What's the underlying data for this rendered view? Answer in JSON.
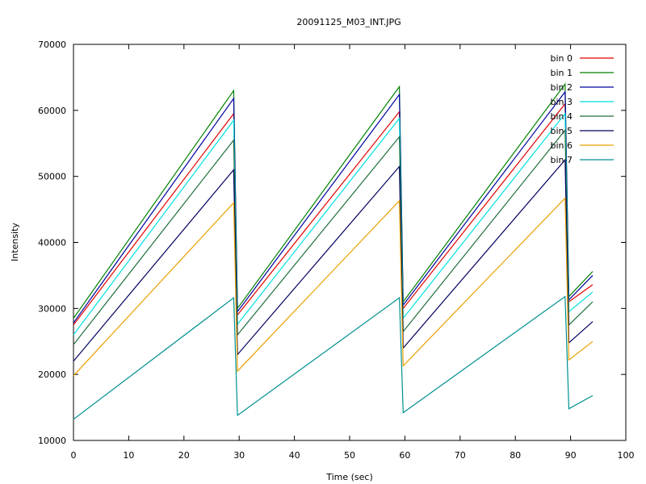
{
  "chart_data": {
    "type": "line",
    "title": "20091125_M03_INT.JPG",
    "xlabel": "Time (sec)",
    "ylabel": "Intensity",
    "xlim": [
      0,
      100
    ],
    "ylim": [
      10000,
      70000
    ],
    "xticks": [
      0,
      10,
      20,
      30,
      40,
      50,
      60,
      70,
      80,
      90,
      100
    ],
    "yticks": [
      10000,
      20000,
      30000,
      40000,
      50000,
      60000,
      70000
    ],
    "grid": false,
    "legend_position": "top-right",
    "x": [
      0,
      29,
      29.7,
      59,
      59.7,
      89,
      89.7,
      94
    ],
    "series": [
      {
        "name": "bin 0",
        "color": "#e00000",
        "values": [
          27500,
          59500,
          29000,
          59800,
          30000,
          61000,
          31000,
          33600
        ]
      },
      {
        "name": "bin 1",
        "color": "#008000",
        "values": [
          28500,
          63000,
          30000,
          63600,
          31000,
          64000,
          31800,
          35600
        ]
      },
      {
        "name": "bin 2",
        "color": "#0000a0",
        "values": [
          27800,
          61800,
          29500,
          62400,
          30500,
          62800,
          31300,
          35000
        ]
      },
      {
        "name": "bin 3",
        "color": "#00e0e0",
        "values": [
          26000,
          58500,
          27600,
          58800,
          28500,
          59500,
          29500,
          32500
        ]
      },
      {
        "name": "bin 4",
        "color": "#1e6e3c",
        "values": [
          24500,
          55500,
          26000,
          56000,
          26500,
          57000,
          27500,
          31000
        ]
      },
      {
        "name": "bin 5",
        "color": "#000060",
        "values": [
          22000,
          51000,
          23000,
          51500,
          24000,
          52500,
          24800,
          28000
        ]
      },
      {
        "name": "bin 6",
        "color": "#e8a000",
        "values": [
          19800,
          46000,
          20500,
          46300,
          21300,
          46700,
          22200,
          25000
        ]
      },
      {
        "name": "bin 7",
        "color": "#009090",
        "values": [
          13200,
          31600,
          13800,
          31600,
          14200,
          31800,
          14800,
          16800
        ]
      }
    ]
  }
}
